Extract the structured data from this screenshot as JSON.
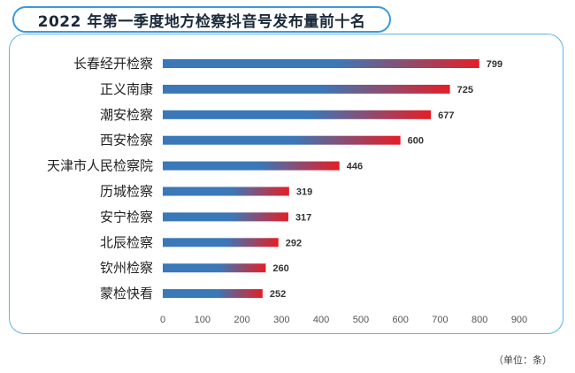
{
  "chart_data": {
    "type": "bar",
    "orientation": "horizontal",
    "title": "2022 年第一季度地方检察抖音号发布量前十名",
    "categories": [
      "长春经开检察",
      "正义南康",
      "潮安检察",
      "西安检察",
      "天津市人民检察院",
      "历城检察",
      "安宁检察",
      "北辰检察",
      "钦州检察",
      "蒙检快看"
    ],
    "values": [
      799,
      725,
      677,
      600,
      446,
      319,
      317,
      292,
      260,
      252
    ],
    "value_labels": [
      "799",
      "725",
      "677",
      "600",
      "446",
      "319",
      "317",
      "292",
      "260",
      "252"
    ],
    "xlim": [
      0,
      900
    ],
    "xticks": [
      "0",
      "100",
      "200",
      "300",
      "400",
      "500",
      "600",
      "700",
      "800",
      "900"
    ],
    "grid": false,
    "unit_note": "（单位：条）",
    "colors": {
      "bar_start": "#3a78b8",
      "bar_end": "#e41e26",
      "frame": "#5fb4e6",
      "title_border": "#3a9ad9"
    }
  }
}
